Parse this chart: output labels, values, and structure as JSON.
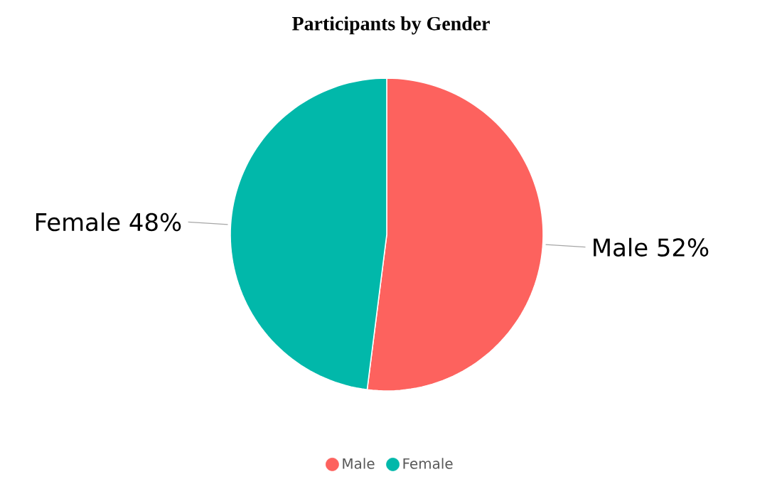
{
  "chart_data": {
    "type": "pie",
    "title": "Participants by Gender",
    "categories": [
      "Male",
      "Female"
    ],
    "values": [
      52,
      48
    ],
    "value_labels": [
      "52%",
      "48%"
    ],
    "colors": [
      "#fd625e",
      "#01b8aa"
    ],
    "legend": "bottom"
  }
}
